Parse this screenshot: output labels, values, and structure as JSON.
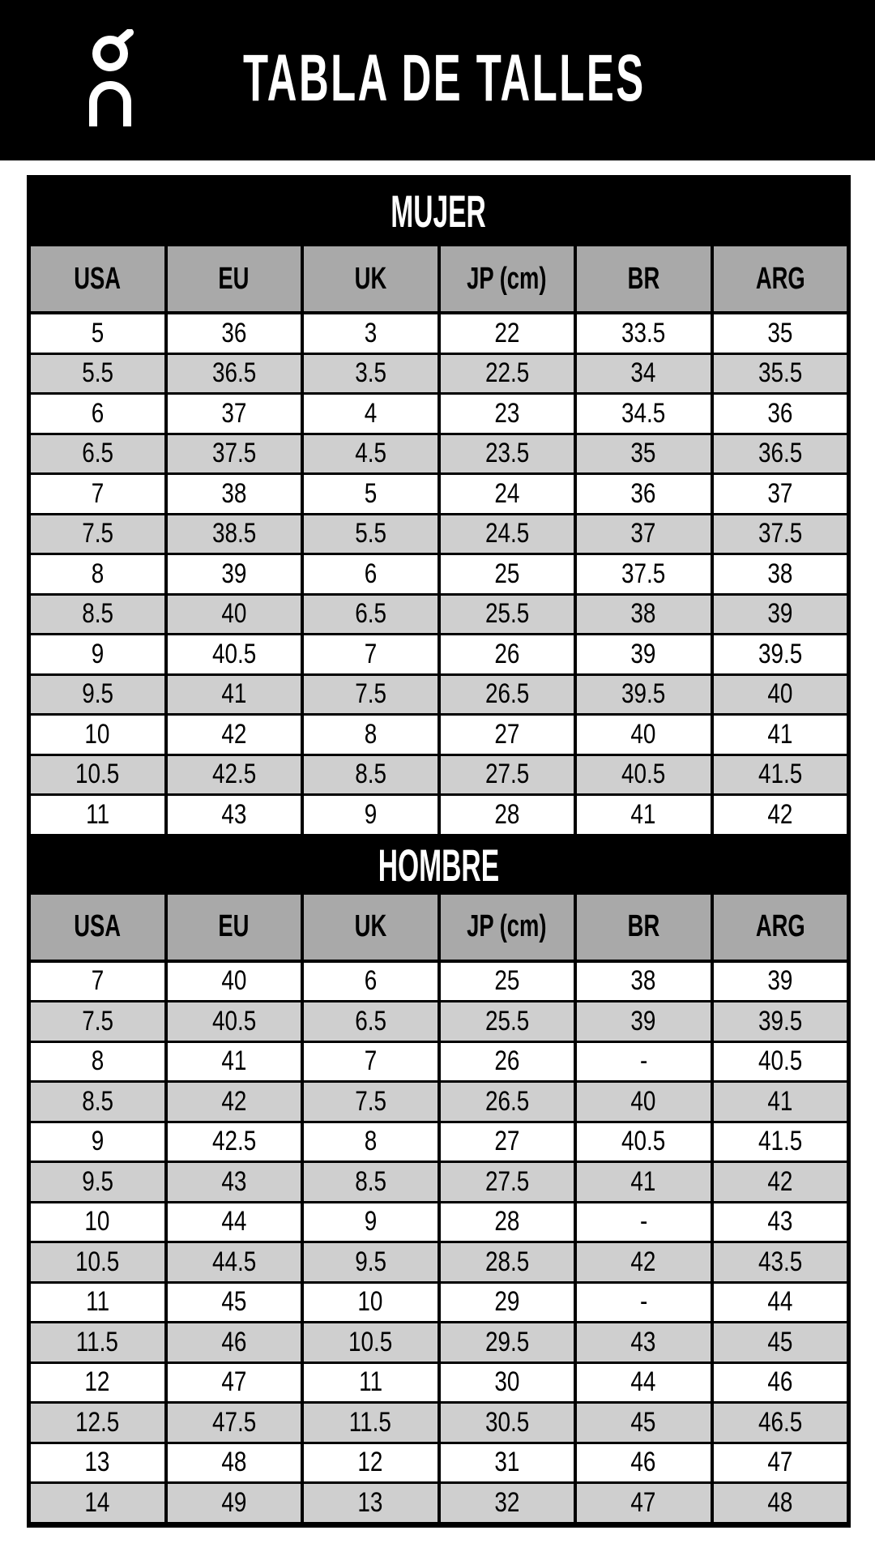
{
  "header": {
    "title": "TABLA DE TALLES",
    "logo": "On"
  },
  "colors": {
    "header_bg": "#000000",
    "column_header_bg": "#a9a9a9",
    "alt_row_bg": "#cfcfcf"
  },
  "columns": [
    "USA",
    "EU",
    "UK",
    "JP (cm)",
    "BR",
    "ARG"
  ],
  "sections": [
    {
      "title": "MUJER",
      "rows": [
        [
          "5",
          "36",
          "3",
          "22",
          "33.5",
          "35"
        ],
        [
          "5.5",
          "36.5",
          "3.5",
          "22.5",
          "34",
          "35.5"
        ],
        [
          "6",
          "37",
          "4",
          "23",
          "34.5",
          "36"
        ],
        [
          "6.5",
          "37.5",
          "4.5",
          "23.5",
          "35",
          "36.5"
        ],
        [
          "7",
          "38",
          "5",
          "24",
          "36",
          "37"
        ],
        [
          "7.5",
          "38.5",
          "5.5",
          "24.5",
          "37",
          "37.5"
        ],
        [
          "8",
          "39",
          "6",
          "25",
          "37.5",
          "38"
        ],
        [
          "8.5",
          "40",
          "6.5",
          "25.5",
          "38",
          "39"
        ],
        [
          "9",
          "40.5",
          "7",
          "26",
          "39",
          "39.5"
        ],
        [
          "9.5",
          "41",
          "7.5",
          "26.5",
          "39.5",
          "40"
        ],
        [
          "10",
          "42",
          "8",
          "27",
          "40",
          "41"
        ],
        [
          "10.5",
          "42.5",
          "8.5",
          "27.5",
          "40.5",
          "41.5"
        ],
        [
          "11",
          "43",
          "9",
          "28",
          "41",
          "42"
        ]
      ]
    },
    {
      "title": "HOMBRE",
      "rows": [
        [
          "7",
          "40",
          "6",
          "25",
          "38",
          "39"
        ],
        [
          "7.5",
          "40.5",
          "6.5",
          "25.5",
          "39",
          "39.5"
        ],
        [
          "8",
          "41",
          "7",
          "26",
          "-",
          "40.5"
        ],
        [
          "8.5",
          "42",
          "7.5",
          "26.5",
          "40",
          "41"
        ],
        [
          "9",
          "42.5",
          "8",
          "27",
          "40.5",
          "41.5"
        ],
        [
          "9.5",
          "43",
          "8.5",
          "27.5",
          "41",
          "42"
        ],
        [
          "10",
          "44",
          "9",
          "28",
          "-",
          "43"
        ],
        [
          "10.5",
          "44.5",
          "9.5",
          "28.5",
          "42",
          "43.5"
        ],
        [
          "11",
          "45",
          "10",
          "29",
          "-",
          "44"
        ],
        [
          "11.5",
          "46",
          "10.5",
          "29.5",
          "43",
          "45"
        ],
        [
          "12",
          "47",
          "11",
          "30",
          "44",
          "46"
        ],
        [
          "12.5",
          "47.5",
          "11.5",
          "30.5",
          "45",
          "46.5"
        ],
        [
          "13",
          "48",
          "12",
          "31",
          "46",
          "47"
        ],
        [
          "14",
          "49",
          "13",
          "32",
          "47",
          "48"
        ]
      ]
    }
  ]
}
